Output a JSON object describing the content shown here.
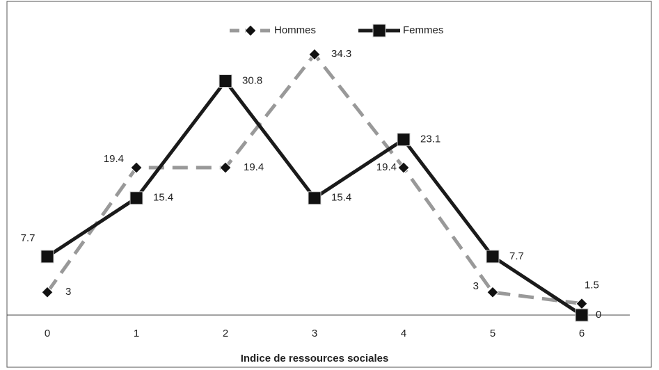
{
  "chart_data": {
    "type": "line",
    "xlabel": "Indice de ressources sociales",
    "categories": [
      "0",
      "1",
      "2",
      "3",
      "4",
      "5",
      "6"
    ],
    "series": [
      {
        "name": "Hommes",
        "color": "#999999",
        "dashed": true,
        "marker": "diamond",
        "values": [
          3,
          19.4,
          19.4,
          34.3,
          19.4,
          3,
          1.5
        ]
      },
      {
        "name": "Femmes",
        "color": "#1a1a1a",
        "dashed": false,
        "marker": "square",
        "values": [
          7.7,
          15.4,
          30.8,
          15.4,
          23.1,
          7.7,
          0
        ]
      }
    ],
    "ylim": [
      0,
      40
    ],
    "legend": "top"
  }
}
